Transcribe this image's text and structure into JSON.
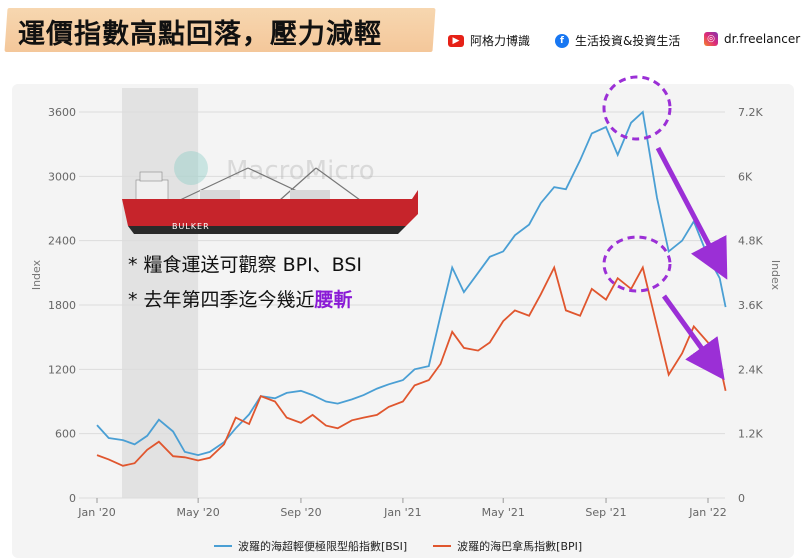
{
  "header": {
    "title": "運價指數高點回落，壓力減輕",
    "youtube_label": "阿格力博識",
    "facebook_label": "生活投資&投資生活",
    "instagram_label": "dr.freelancer"
  },
  "watermark": "MacroMicro",
  "ship_label": "BULKER",
  "notes": {
    "line1": "* 糧食運送可觀察 BPI、BSI",
    "line2_prefix": "* 去年第四季迄今幾近",
    "line2_highlight": "腰斬"
  },
  "colors": {
    "bsi": "#4a9fd4",
    "bpi": "#e0562e",
    "annotation": "#9b2fd6",
    "shade": "#e2e2e2"
  },
  "chart_data": {
    "type": "line",
    "x_ticks": [
      "Jan '20",
      "May '20",
      "Sep '20",
      "Jan '21",
      "May '21",
      "Sep '21",
      "Jan '22"
    ],
    "y_left": {
      "label": "Index",
      "ticks": [
        0,
        600,
        1200,
        1800,
        2400,
        3000,
        3600
      ],
      "range": [
        0,
        3600
      ]
    },
    "y_right": {
      "label": "Index",
      "ticks": [
        "0",
        "1.2K",
        "2.4K",
        "3.6K",
        "4.8K",
        "6K",
        "7.2K"
      ],
      "range": [
        0,
        7200
      ]
    },
    "shaded_period": [
      "2020-01",
      "2020-05"
    ],
    "series": [
      {
        "name": "波羅的海超輕便極限型船指數[BSI]",
        "axis": "left",
        "points": [
          [
            "2020-01-01",
            680
          ],
          [
            "2020-01-15",
            560
          ],
          [
            "2020-02-01",
            540
          ],
          [
            "2020-02-15",
            500
          ],
          [
            "2020-03-01",
            580
          ],
          [
            "2020-03-15",
            730
          ],
          [
            "2020-04-01",
            620
          ],
          [
            "2020-04-15",
            430
          ],
          [
            "2020-05-01",
            400
          ],
          [
            "2020-05-15",
            430
          ],
          [
            "2020-06-01",
            520
          ],
          [
            "2020-06-15",
            650
          ],
          [
            "2020-07-01",
            780
          ],
          [
            "2020-07-15",
            950
          ],
          [
            "2020-08-01",
            930
          ],
          [
            "2020-08-15",
            980
          ],
          [
            "2020-09-01",
            1000
          ],
          [
            "2020-09-15",
            960
          ],
          [
            "2020-10-01",
            900
          ],
          [
            "2020-10-15",
            880
          ],
          [
            "2020-11-01",
            920
          ],
          [
            "2020-11-15",
            960
          ],
          [
            "2020-12-01",
            1020
          ],
          [
            "2020-12-15",
            1060
          ],
          [
            "2021-01-01",
            1100
          ],
          [
            "2021-01-15",
            1200
          ],
          [
            "2021-02-01",
            1230
          ],
          [
            "2021-02-15",
            1700
          ],
          [
            "2021-03-01",
            2150
          ],
          [
            "2021-03-15",
            1920
          ],
          [
            "2021-04-01",
            2100
          ],
          [
            "2021-04-15",
            2250
          ],
          [
            "2021-05-01",
            2300
          ],
          [
            "2021-05-15",
            2450
          ],
          [
            "2021-06-01",
            2550
          ],
          [
            "2021-06-15",
            2750
          ],
          [
            "2021-07-01",
            2900
          ],
          [
            "2021-07-15",
            2880
          ],
          [
            "2021-08-01",
            3150
          ],
          [
            "2021-08-15",
            3400
          ],
          [
            "2021-09-01",
            3460
          ],
          [
            "2021-09-15",
            3200
          ],
          [
            "2021-10-01",
            3500
          ],
          [
            "2021-10-15",
            3600
          ],
          [
            "2021-11-01",
            2800
          ],
          [
            "2021-11-15",
            2300
          ],
          [
            "2021-12-01",
            2400
          ],
          [
            "2021-12-15",
            2580
          ],
          [
            "2022-01-01",
            2250
          ],
          [
            "2022-01-15",
            2050
          ],
          [
            "2022-01-22",
            1780
          ]
        ]
      },
      {
        "name": "波羅的海巴拿馬指數[BPI]",
        "axis": "right",
        "points": [
          [
            "2020-01-01",
            800
          ],
          [
            "2020-01-15",
            720
          ],
          [
            "2020-02-01",
            600
          ],
          [
            "2020-02-15",
            650
          ],
          [
            "2020-03-01",
            900
          ],
          [
            "2020-03-15",
            1050
          ],
          [
            "2020-04-01",
            780
          ],
          [
            "2020-04-15",
            760
          ],
          [
            "2020-05-01",
            700
          ],
          [
            "2020-05-15",
            750
          ],
          [
            "2020-06-01",
            1000
          ],
          [
            "2020-06-15",
            1500
          ],
          [
            "2020-07-01",
            1380
          ],
          [
            "2020-07-15",
            1900
          ],
          [
            "2020-08-01",
            1800
          ],
          [
            "2020-08-15",
            1500
          ],
          [
            "2020-09-01",
            1400
          ],
          [
            "2020-09-15",
            1550
          ],
          [
            "2020-10-01",
            1350
          ],
          [
            "2020-10-15",
            1300
          ],
          [
            "2020-11-01",
            1450
          ],
          [
            "2020-11-15",
            1500
          ],
          [
            "2020-12-01",
            1550
          ],
          [
            "2020-12-15",
            1700
          ],
          [
            "2021-01-01",
            1800
          ],
          [
            "2021-01-15",
            2100
          ],
          [
            "2021-02-01",
            2200
          ],
          [
            "2021-02-15",
            2500
          ],
          [
            "2021-03-01",
            3100
          ],
          [
            "2021-03-15",
            2800
          ],
          [
            "2021-04-01",
            2750
          ],
          [
            "2021-04-15",
            2900
          ],
          [
            "2021-05-01",
            3300
          ],
          [
            "2021-05-15",
            3500
          ],
          [
            "2021-06-01",
            3400
          ],
          [
            "2021-06-15",
            3800
          ],
          [
            "2021-07-01",
            4300
          ],
          [
            "2021-07-15",
            3500
          ],
          [
            "2021-08-01",
            3400
          ],
          [
            "2021-08-15",
            3900
          ],
          [
            "2021-09-01",
            3700
          ],
          [
            "2021-09-15",
            4100
          ],
          [
            "2021-10-01",
            3900
          ],
          [
            "2021-10-15",
            4300
          ],
          [
            "2021-11-01",
            3200
          ],
          [
            "2021-11-15",
            2300
          ],
          [
            "2021-12-01",
            2700
          ],
          [
            "2021-12-15",
            3200
          ],
          [
            "2022-01-01",
            2900
          ],
          [
            "2022-01-15",
            2500
          ],
          [
            "2022-01-22",
            2000
          ]
        ]
      }
    ]
  }
}
